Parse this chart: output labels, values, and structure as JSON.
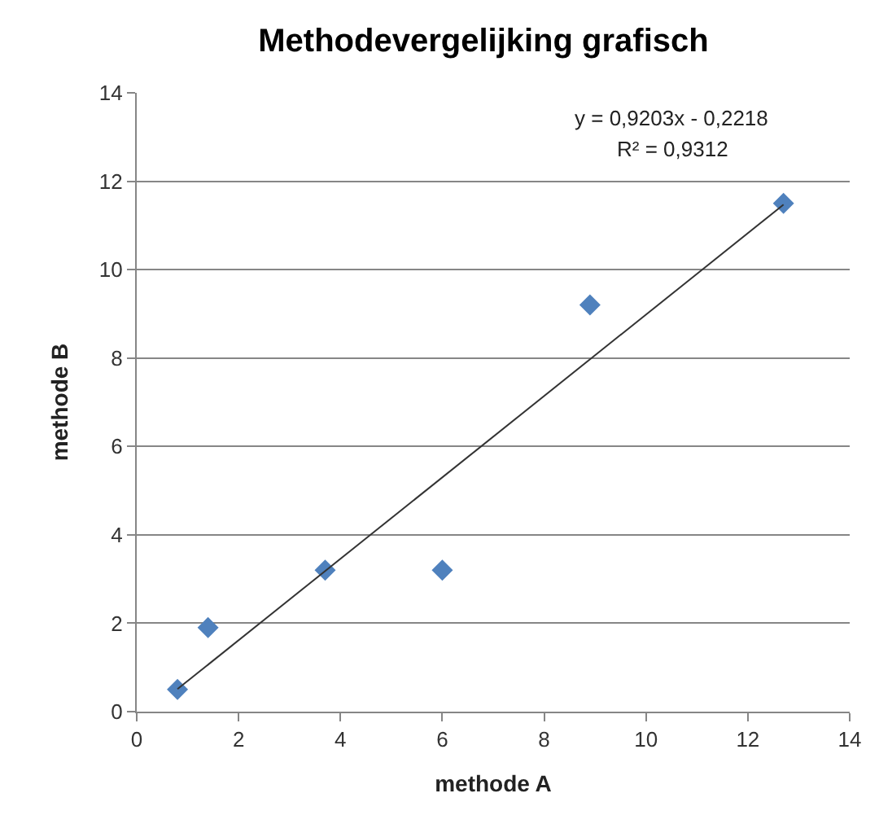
{
  "chart_data": {
    "type": "scatter",
    "title": "Methodevergelijking grafisch",
    "xlabel": "methode A",
    "ylabel": "methode B",
    "series": [
      {
        "color": "#4f81bd",
        "marker": "diamond",
        "x": [
          0.8,
          1.4,
          3.7,
          6.0,
          8.9,
          12.7
        ],
        "values": [
          0.5,
          1.9,
          3.2,
          3.2,
          9.2,
          11.5
        ]
      },
      {
        "type": "line",
        "color": "#333333",
        "marker": "none",
        "line_style": "solid",
        "x": [
          0.8,
          12.7
        ],
        "values": [
          0.51,
          11.47
        ]
      }
    ],
    "annotations": [
      "y = 0,9203x - 0,2218",
      "R² = 0,9312"
    ],
    "xlim": [
      0,
      14
    ],
    "xticks": [
      0,
      2,
      4,
      6,
      8,
      10,
      12,
      14
    ],
    "ylim": [
      0,
      14
    ],
    "yticks": [
      0,
      2,
      4,
      6,
      8,
      10,
      12,
      14
    ],
    "grid": "y"
  }
}
